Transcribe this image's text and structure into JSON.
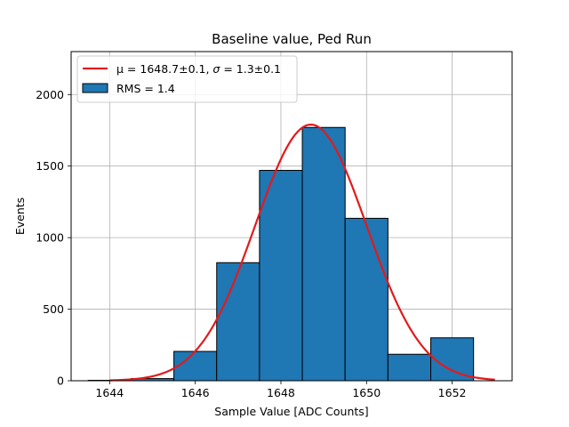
{
  "chart_data": {
    "type": "bar",
    "title": "Baseline value, Ped Run",
    "xlabel": "Sample Value [ADC Counts]",
    "ylabel": "Events",
    "xlim": [
      1643.1,
      1653.4
    ],
    "ylim": [
      0,
      2300
    ],
    "grid": true,
    "bar_color": "#1f77b4",
    "fit_color": "#e31a1c",
    "xticks": [
      1644,
      1646,
      1648,
      1650,
      1652
    ],
    "yticks": [
      0,
      500,
      1000,
      1500,
      2000
    ],
    "bins": [
      {
        "x0": 1643.5,
        "x1": 1644.5,
        "value": 3
      },
      {
        "x0": 1644.5,
        "x1": 1645.5,
        "value": 15
      },
      {
        "x0": 1645.5,
        "x1": 1646.5,
        "value": 205
      },
      {
        "x0": 1646.5,
        "x1": 1647.5,
        "value": 825
      },
      {
        "x0": 1647.5,
        "x1": 1648.5,
        "value": 1470
      },
      {
        "x0": 1648.5,
        "x1": 1649.5,
        "value": 1770
      },
      {
        "x0": 1649.5,
        "x1": 1650.5,
        "value": 1135
      },
      {
        "x0": 1650.5,
        "x1": 1651.5,
        "value": 185
      },
      {
        "x0": 1651.5,
        "x1": 1652.5,
        "value": 300
      }
    ],
    "fit": {
      "mu": 1648.7,
      "sigma": 1.3,
      "amplitude": 1790,
      "x_range": [
        1644,
        1653
      ]
    },
    "legend": {
      "placement": "top-left",
      "entries": [
        {
          "kind": "line",
          "label_prefix": "μ = 1648.7±0.1, ",
          "label_sigma": "σ",
          "label_suffix": " = 1.3±0.1"
        },
        {
          "kind": "patch",
          "label": "RMS = 1.4"
        }
      ]
    }
  }
}
